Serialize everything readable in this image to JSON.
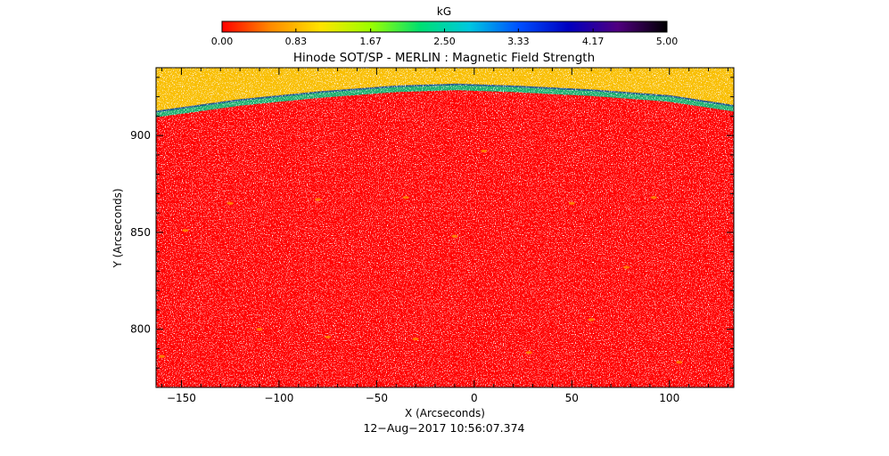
{
  "chart_data": {
    "type": "heatmap",
    "title": "Hinode SOT/SP - MERLIN : Magnetic Field Strength",
    "xlabel": "X (Arcseconds)",
    "ylabel": "Y (Arcseconds)",
    "xlim": [
      -163,
      133
    ],
    "ylim": [
      770,
      935
    ],
    "x_ticks": [
      -150,
      -100,
      -50,
      0,
      50,
      100
    ],
    "x_tick_labels": [
      "−150",
      "−100",
      "−50",
      "0",
      "50",
      "100"
    ],
    "y_ticks": [
      800,
      850,
      900
    ],
    "y_tick_labels": [
      "800",
      "850",
      "900"
    ],
    "colorbar": {
      "label": "kG",
      "range": [
        0.0,
        5.0
      ],
      "ticks": [
        0.0,
        0.83,
        1.67,
        2.5,
        3.33,
        4.17,
        5.0
      ],
      "tick_labels": [
        "0.00",
        "0.83",
        "1.67",
        "2.50",
        "3.33",
        "4.17",
        "5.00"
      ],
      "colormap_stops": [
        "#ff0000",
        "#ff8c00",
        "#ffe400",
        "#9cff00",
        "#00e070",
        "#00c8e0",
        "#0050ff",
        "#0000c0",
        "#500080",
        "#000000"
      ]
    },
    "limb_y_arcsec": [
      [
        -163,
        911
      ],
      [
        -120,
        917
      ],
      [
        -80,
        921
      ],
      [
        -40,
        924
      ],
      [
        -10,
        925
      ],
      [
        20,
        924
      ],
      [
        60,
        922
      ],
      [
        100,
        919
      ],
      [
        133,
        914
      ]
    ],
    "disk_value_kG": 0.0,
    "off_limb_description": "",
    "footer_timestamp": "12−Aug−2017 10:56:07.374"
  }
}
